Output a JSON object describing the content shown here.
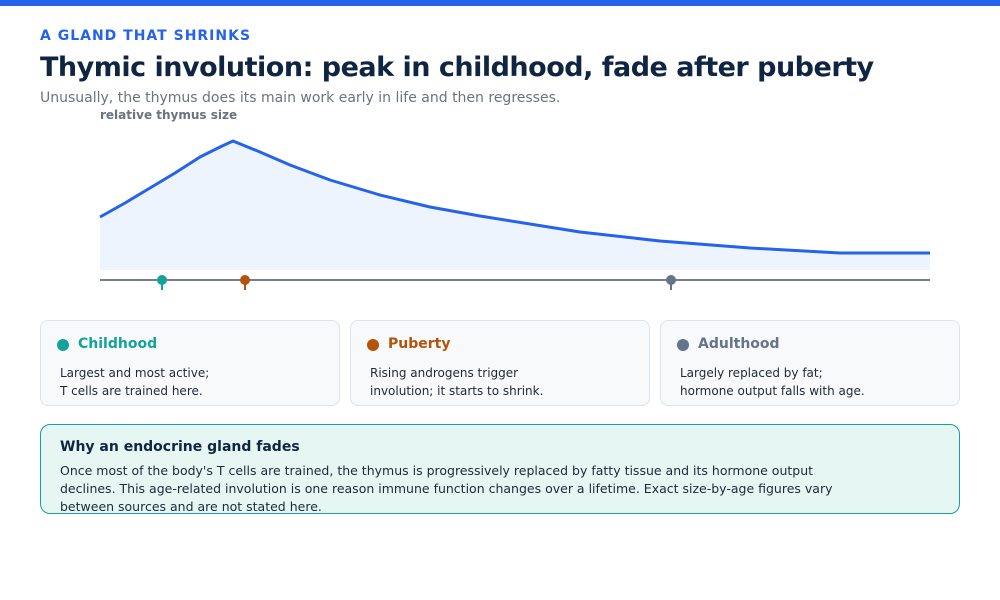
{
  "header": {
    "eyebrow": "A GLAND THAT SHRINKS",
    "title": "Thymic involution: peak in childhood, fade after puberty",
    "subtitle": "Unusually, the thymus does its main work early in life and then regresses."
  },
  "figure": {
    "axis_label": "relative thymus size"
  },
  "stages": [
    {
      "name": "Childhood",
      "lines": [
        "Largest and most active;",
        "T cells are trained here."
      ]
    },
    {
      "name": "Puberty",
      "lines": [
        "Rising androgens trigger",
        "involution; it starts to shrink."
      ]
    },
    {
      "name": "Adulthood",
      "lines": [
        "Largely replaced by fat;",
        "hormone output falls with age."
      ]
    }
  ],
  "note": {
    "title": "Why an endocrine gland fades",
    "body": "Once most of the body's T cells are trained, the thymus is progressively replaced by fatty tissue and its hormone output declines. This age-related involution is one reason immune function changes over a lifetime. Exact size-by-age figures vary between sources and are not stated here."
  }
}
